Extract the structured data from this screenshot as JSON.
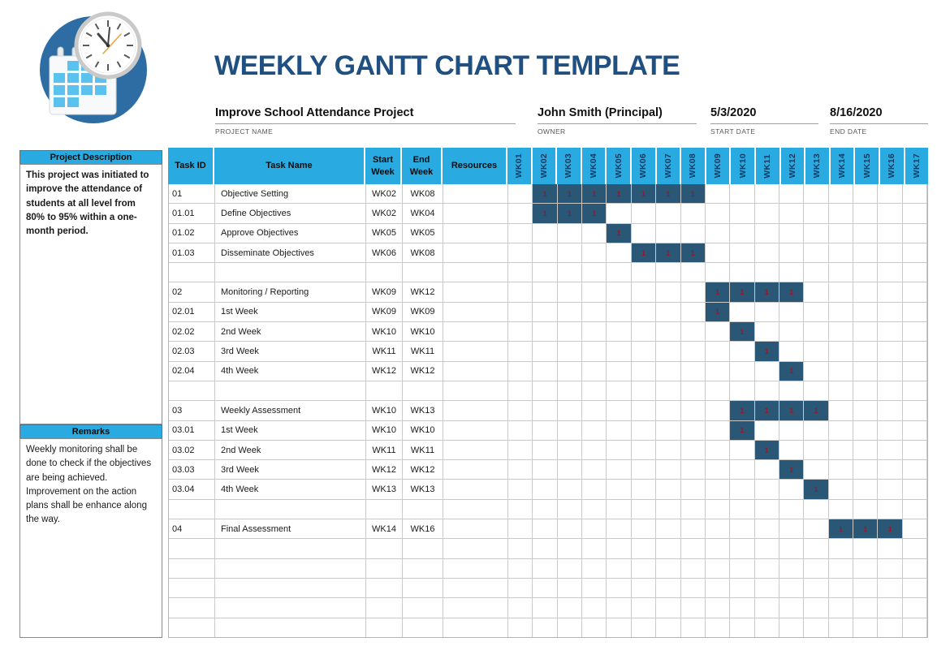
{
  "page": {
    "title": "WEEKLY GANTT CHART TEMPLATE"
  },
  "project_info": {
    "project_name": {
      "value": "Improve School Attendance Project",
      "label": "PROJECT NAME"
    },
    "owner": {
      "value": "John Smith (Principal)",
      "label": "OWNER"
    },
    "start_date": {
      "value": "5/3/2020",
      "label": "START DATE"
    },
    "end_date": {
      "value": "8/16/2020",
      "label": "END DATE"
    }
  },
  "sidebar": {
    "description": {
      "header": "Project Description",
      "body": "This project was initiated to improve the attendance of students at all level from 80% to 95% within a one-month period."
    },
    "remarks": {
      "header": "Remarks",
      "body": "Weekly monitoring shall be done to check if the objectives are being achieved.\nImprovement on the action plans shall be enhance along the way."
    }
  },
  "table": {
    "headers": {
      "task_id": "Task ID",
      "task_name": "Task Name",
      "start_week_line1": "Start",
      "start_week_line2": "Week",
      "end_week_line1": "End",
      "end_week_line2": "Week",
      "resources": "Resources"
    },
    "week_headers": [
      "WK01",
      "WK02",
      "WK03",
      "WK04",
      "WK05",
      "WK06",
      "WK07",
      "WK08",
      "WK09",
      "WK10",
      "WK11",
      "WK12",
      "WK13",
      "WK14",
      "WK15",
      "WK16",
      "WK17"
    ],
    "gantt_cell_value": "1",
    "rows": [
      {
        "id": "01",
        "name": "Objective Setting",
        "start": "WK02",
        "end": "WK08",
        "bar_start": 2,
        "bar_end": 8
      },
      {
        "id": "01.01",
        "name": "Define Objectives",
        "start": "WK02",
        "end": "WK04",
        "bar_start": 2,
        "bar_end": 4
      },
      {
        "id": "01.02",
        "name": "Approve Objectives",
        "start": "WK05",
        "end": "WK05",
        "bar_start": 5,
        "bar_end": 5
      },
      {
        "id": "01.03",
        "name": "Disseminate Objectives",
        "start": "WK06",
        "end": "WK08",
        "bar_start": 6,
        "bar_end": 8
      },
      {
        "id": "",
        "name": "",
        "start": "",
        "end": "",
        "bar_start": null,
        "bar_end": null
      },
      {
        "id": "02",
        "name": "Monitoring / Reporting",
        "start": "WK09",
        "end": "WK12",
        "bar_start": 9,
        "bar_end": 12
      },
      {
        "id": "02.01",
        "name": "1st Week",
        "start": "WK09",
        "end": "WK09",
        "bar_start": 9,
        "bar_end": 9
      },
      {
        "id": "02.02",
        "name": "2nd Week",
        "start": "WK10",
        "end": "WK10",
        "bar_start": 10,
        "bar_end": 10
      },
      {
        "id": "02.03",
        "name": "3rd Week",
        "start": "WK11",
        "end": "WK11",
        "bar_start": 11,
        "bar_end": 11
      },
      {
        "id": "02.04",
        "name": "4th Week",
        "start": "WK12",
        "end": "WK12",
        "bar_start": 12,
        "bar_end": 12
      },
      {
        "id": "",
        "name": "",
        "start": "",
        "end": "",
        "bar_start": null,
        "bar_end": null
      },
      {
        "id": "03",
        "name": "Weekly Assessment",
        "start": "WK10",
        "end": "WK13",
        "bar_start": 10,
        "bar_end": 13
      },
      {
        "id": "03.01",
        "name": "1st Week",
        "start": "WK10",
        "end": "WK10",
        "bar_start": 10,
        "bar_end": 10
      },
      {
        "id": "03.02",
        "name": "2nd Week",
        "start": "WK11",
        "end": "WK11",
        "bar_start": 11,
        "bar_end": 11
      },
      {
        "id": "03.03",
        "name": "3rd Week",
        "start": "WK12",
        "end": "WK12",
        "bar_start": 12,
        "bar_end": 12
      },
      {
        "id": "03.04",
        "name": "4th Week",
        "start": "WK13",
        "end": "WK13",
        "bar_start": 13,
        "bar_end": 13
      },
      {
        "id": "",
        "name": "",
        "start": "",
        "end": "",
        "bar_start": null,
        "bar_end": null
      },
      {
        "id": "04",
        "name": "Final Assessment",
        "start": "WK14",
        "end": "WK16",
        "bar_start": 14,
        "bar_end": 16
      },
      {
        "id": "",
        "name": "",
        "start": "",
        "end": "",
        "bar_start": null,
        "bar_end": null
      },
      {
        "id": "",
        "name": "",
        "start": "",
        "end": "",
        "bar_start": null,
        "bar_end": null
      },
      {
        "id": "",
        "name": "",
        "start": "",
        "end": "",
        "bar_start": null,
        "bar_end": null
      },
      {
        "id": "",
        "name": "",
        "start": "",
        "end": "",
        "bar_start": null,
        "bar_end": null
      },
      {
        "id": "",
        "name": "",
        "start": "",
        "end": "",
        "bar_start": null,
        "bar_end": null
      }
    ]
  },
  "colors": {
    "accent_cyan": "#29ABE2",
    "bar_navy": "#2B5777",
    "bar_value_red": "#8E1B2F",
    "title_blue": "#1F5081"
  },
  "chart_data": {
    "type": "bar",
    "subtype": "gantt",
    "title": "WEEKLY GANTT CHART TEMPLATE",
    "categories": [
      "WK01",
      "WK02",
      "WK03",
      "WK04",
      "WK05",
      "WK06",
      "WK07",
      "WK08",
      "WK09",
      "WK10",
      "WK11",
      "WK12",
      "WK13",
      "WK14",
      "WK15",
      "WK16",
      "WK17"
    ],
    "cell_value_per_week": 1,
    "series": [
      {
        "name": "Objective Setting",
        "start_week": 2,
        "end_week": 8
      },
      {
        "name": "Define Objectives",
        "start_week": 2,
        "end_week": 4
      },
      {
        "name": "Approve Objectives",
        "start_week": 5,
        "end_week": 5
      },
      {
        "name": "Disseminate Objectives",
        "start_week": 6,
        "end_week": 8
      },
      {
        "name": "Monitoring / Reporting",
        "start_week": 9,
        "end_week": 12
      },
      {
        "name": "1st Week",
        "start_week": 9,
        "end_week": 9
      },
      {
        "name": "2nd Week",
        "start_week": 10,
        "end_week": 10
      },
      {
        "name": "3rd Week",
        "start_week": 11,
        "end_week": 11
      },
      {
        "name": "4th Week",
        "start_week": 12,
        "end_week": 12
      },
      {
        "name": "Weekly Assessment",
        "start_week": 10,
        "end_week": 13
      },
      {
        "name": "1st Week",
        "start_week": 10,
        "end_week": 10
      },
      {
        "name": "2nd Week",
        "start_week": 11,
        "end_week": 11
      },
      {
        "name": "3rd Week",
        "start_week": 12,
        "end_week": 12
      },
      {
        "name": "4th Week",
        "start_week": 13,
        "end_week": 13
      },
      {
        "name": "Final Assessment",
        "start_week": 14,
        "end_week": 16
      }
    ],
    "layout": {
      "legend": false,
      "grid": true,
      "bar_color": "#2B5777"
    }
  }
}
